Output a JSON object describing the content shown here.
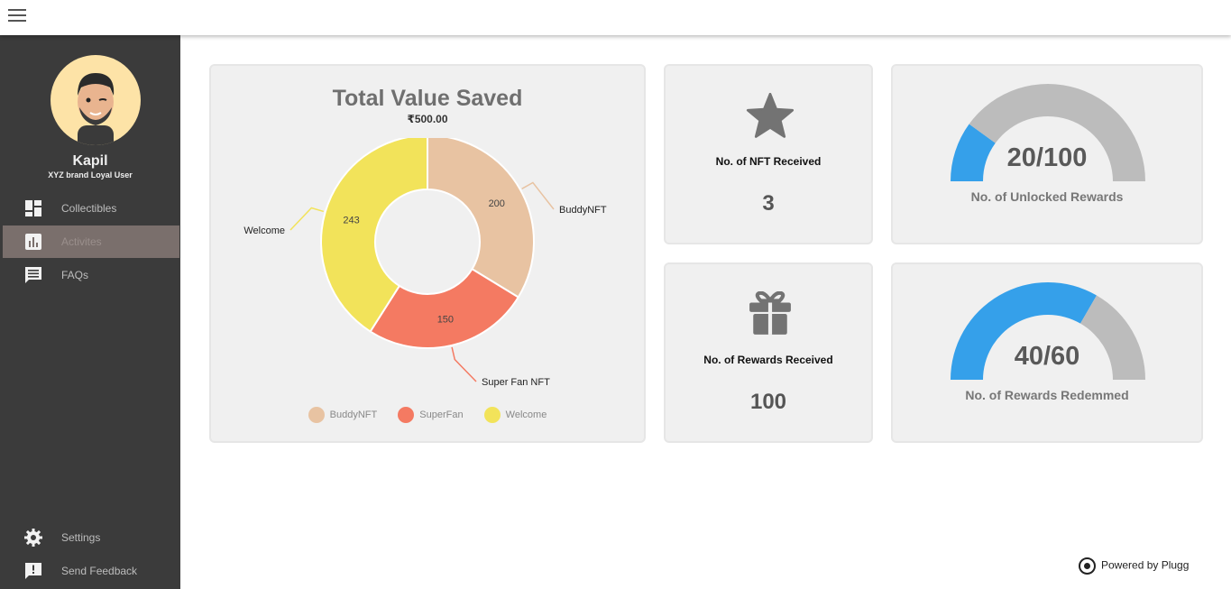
{
  "user": {
    "name": "Kapil",
    "role": "XYZ brand Loyal User"
  },
  "nav": {
    "items": [
      {
        "label": "Collectibles",
        "icon": "dashboard-icon",
        "active": false
      },
      {
        "label": "Activites",
        "icon": "bar-chart-icon",
        "active": true
      },
      {
        "label": "FAQs",
        "icon": "chat-icon",
        "active": false
      }
    ],
    "bottom_items": [
      {
        "label": "Settings",
        "icon": "gear-icon"
      },
      {
        "label": "Send Feedback",
        "icon": "feedback-icon"
      }
    ]
  },
  "total_value": {
    "title": "Total Value Saved",
    "amount": "₹500.00"
  },
  "chart_data": {
    "type": "pie",
    "categories": [
      "BuddyNFT",
      "Super Fan NFT",
      "Welcome"
    ],
    "values": [
      200,
      150,
      243
    ],
    "legend": [
      "BuddyNFT",
      "SuperFan",
      "Welcome"
    ],
    "colors": [
      "#e8c3a2",
      "#f47a62",
      "#f2e35a"
    ],
    "legend_position": "bottom"
  },
  "stats": {
    "nft": {
      "label": "No. of NFT Received",
      "value": "3",
      "icon": "star-icon"
    },
    "rewards": {
      "label": "No. of Rewards Received",
      "value": "100",
      "icon": "gift-icon"
    }
  },
  "gauges": {
    "unlocked": {
      "value_text": "20/100",
      "label": "No. of Unlocked Rewards",
      "value": 20,
      "max": 100
    },
    "redeemed": {
      "value_text": "40/60",
      "label": "No. of Rewards Redemmed",
      "value": 40,
      "max": 60
    }
  },
  "colors": {
    "sidebar": "#3b3b3b",
    "active": "#7a6f6c",
    "gauge_fill": "#35a0ea",
    "gauge_track": "#bcbcbc"
  },
  "footer": {
    "text": "Powered by Plugg"
  }
}
